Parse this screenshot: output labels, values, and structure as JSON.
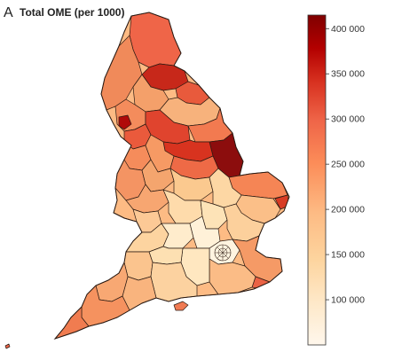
{
  "figure": {
    "panel_letter": "A",
    "title": "Total OME (per 1000)"
  },
  "legend": {
    "min_value": 50000,
    "max_value": 415000,
    "ticks": [
      {
        "value": 400000,
        "label": "400 000"
      },
      {
        "value": 350000,
        "label": "350 000"
      },
      {
        "value": 300000,
        "label": "300 000"
      },
      {
        "value": 250000,
        "label": "250 000"
      },
      {
        "value": 200000,
        "label": "200 000"
      },
      {
        "value": 150000,
        "label": "150 000"
      },
      {
        "value": 100000,
        "label": "100 000"
      }
    ],
    "color_stops": [
      "#fff7ec",
      "#fee8c8",
      "#fdd49e",
      "#fdbb84",
      "#fc8d59",
      "#ef6548",
      "#d7301f",
      "#b30000",
      "#7f0000"
    ]
  }
}
